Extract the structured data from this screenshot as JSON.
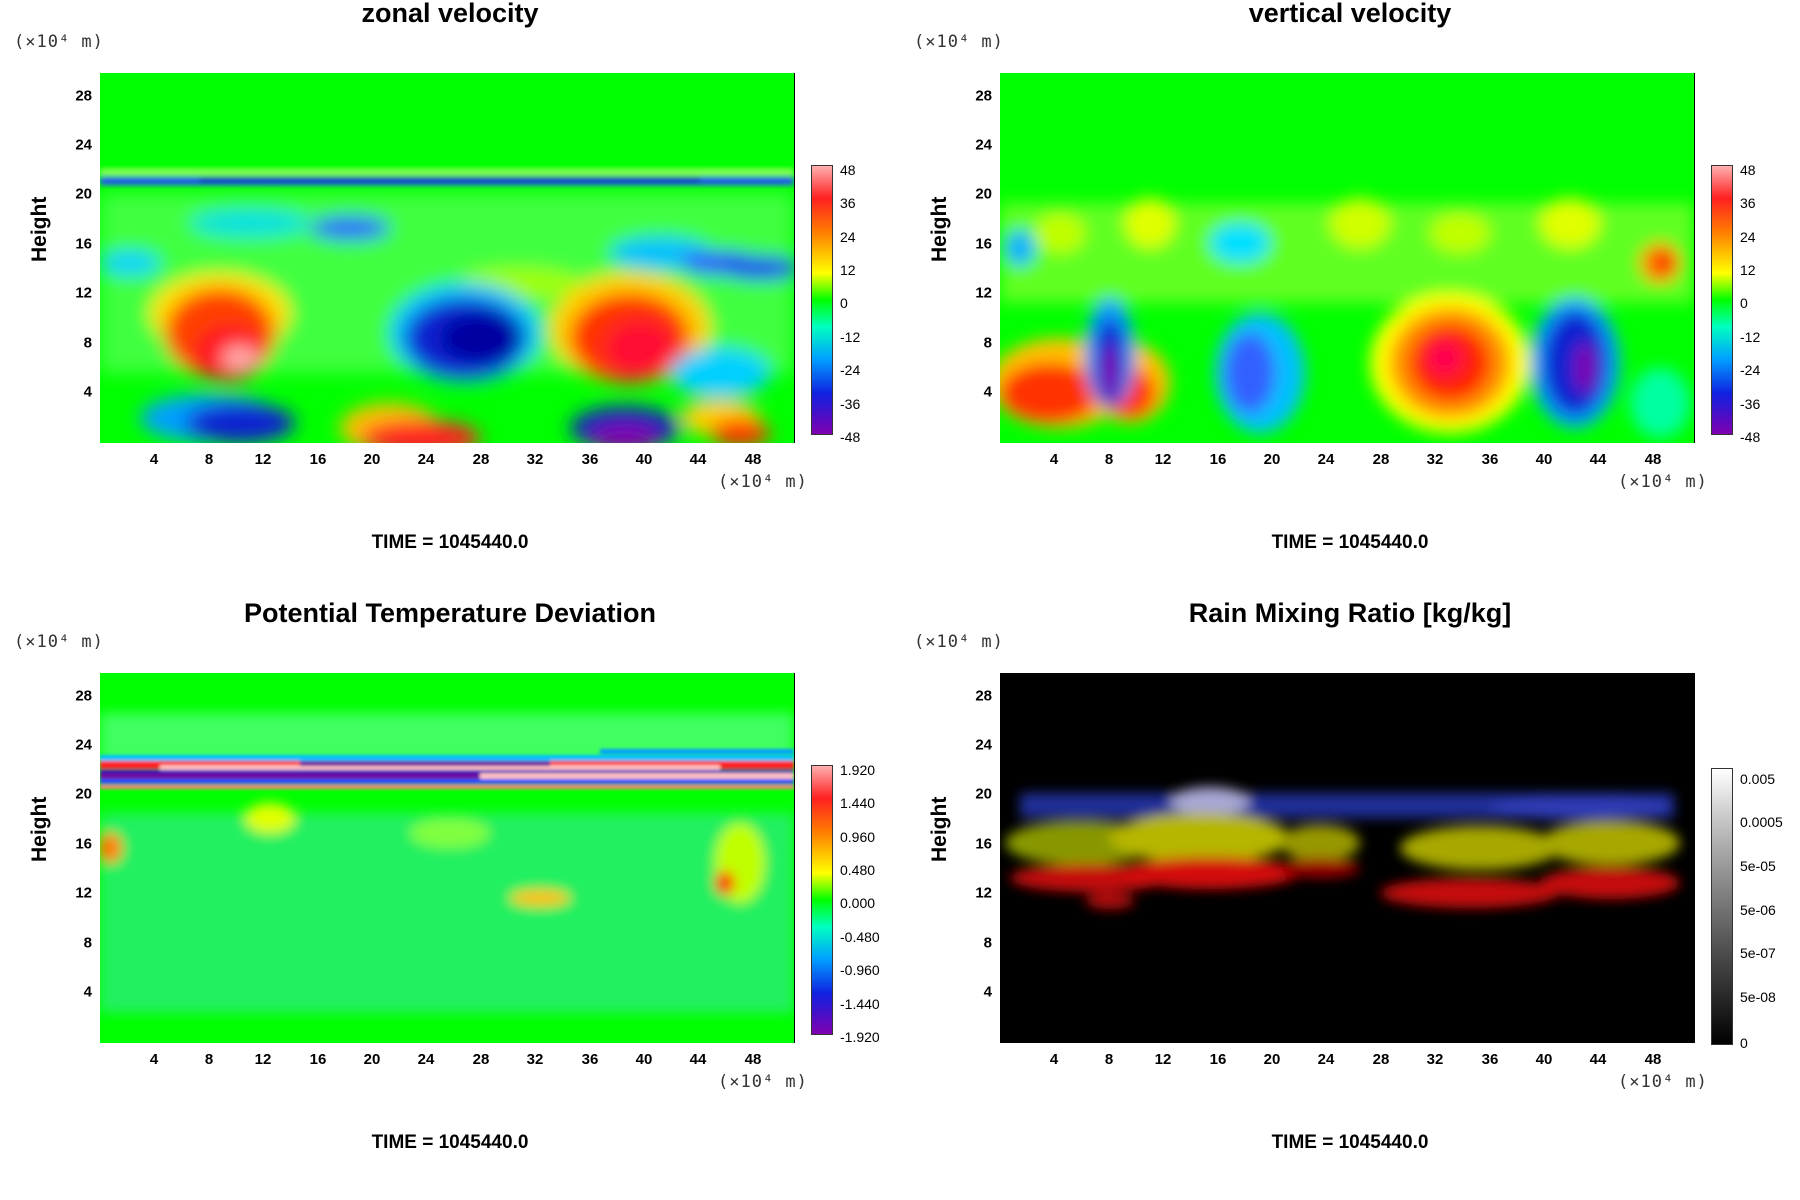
{
  "chart_data": [
    {
      "type": "heatmap",
      "title": "zonal velocity",
      "ylabel": "Height",
      "x_unit": "(×10⁴ m)",
      "y_unit": "(×10⁴ m)",
      "x_ticks": [
        "4",
        "8",
        "12",
        "16",
        "20",
        "24",
        "28",
        "32",
        "36",
        "40",
        "44",
        "48"
      ],
      "y_ticks": [
        "4",
        "8",
        "12",
        "16",
        "20",
        "24",
        "28"
      ],
      "xlim": [
        0,
        51
      ],
      "ylim": [
        0,
        30
      ],
      "colorbar_labels": [
        "48",
        "36",
        "24",
        "12",
        "0",
        "-12",
        "-24",
        "-36",
        "-48"
      ],
      "colorbar_range": [
        -48,
        48
      ],
      "time_label": "TIME = 1045440.0"
    },
    {
      "type": "heatmap",
      "title": "vertical velocity",
      "ylabel": "Height",
      "x_unit": "(×10⁴ m)",
      "y_unit": "(×10⁴ m)",
      "x_ticks": [
        "4",
        "8",
        "12",
        "16",
        "20",
        "24",
        "28",
        "32",
        "36",
        "40",
        "44",
        "48"
      ],
      "y_ticks": [
        "4",
        "8",
        "12",
        "16",
        "20",
        "24",
        "28"
      ],
      "xlim": [
        0,
        51
      ],
      "ylim": [
        0,
        30
      ],
      "colorbar_labels": [
        "48",
        "36",
        "24",
        "12",
        "0",
        "-12",
        "-24",
        "-36",
        "-48"
      ],
      "colorbar_range": [
        -48,
        48
      ],
      "time_label": "TIME = 1045440.0"
    },
    {
      "type": "heatmap",
      "title": "Potential Temperature Deviation",
      "ylabel": "Height",
      "x_unit": "(×10⁴ m)",
      "y_unit": "(×10⁴ m)",
      "x_ticks": [
        "4",
        "8",
        "12",
        "16",
        "20",
        "24",
        "28",
        "32",
        "36",
        "40",
        "44",
        "48"
      ],
      "y_ticks": [
        "4",
        "8",
        "12",
        "16",
        "20",
        "24",
        "28"
      ],
      "xlim": [
        0,
        51
      ],
      "ylim": [
        0,
        30
      ],
      "colorbar_labels": [
        "1.920",
        "1.440",
        "0.960",
        "0.480",
        "0.000",
        "-0.480",
        "-0.960",
        "-1.440",
        "-1.920"
      ],
      "colorbar_range": [
        -1.92,
        1.92
      ],
      "time_label": "TIME = 1045440.0"
    },
    {
      "type": "heatmap",
      "title": "Rain Mixing Ratio [kg/kg]",
      "ylabel": "Height",
      "x_unit": "(×10⁴ m)",
      "y_unit": "(×10⁴ m)",
      "x_ticks": [
        "4",
        "8",
        "12",
        "16",
        "20",
        "24",
        "28",
        "32",
        "36",
        "40",
        "44",
        "48"
      ],
      "y_ticks": [
        "4",
        "8",
        "12",
        "16",
        "20",
        "24",
        "28"
      ],
      "xlim": [
        0,
        51
      ],
      "ylim": [
        0,
        30
      ],
      "colorbar_labels": [
        "0.005",
        "0.0005",
        "5e-05",
        "5e-06",
        "5e-07",
        "5e-08",
        "0"
      ],
      "colorbar_scale": "log",
      "time_label": "TIME = 1045440.0"
    }
  ],
  "colors": {
    "field_green": "#00ff00",
    "warm_red": "#ff2000",
    "cold_blue": "#1010c0",
    "cold_purple": "#7010a0",
    "rain_background": "#000000"
  }
}
